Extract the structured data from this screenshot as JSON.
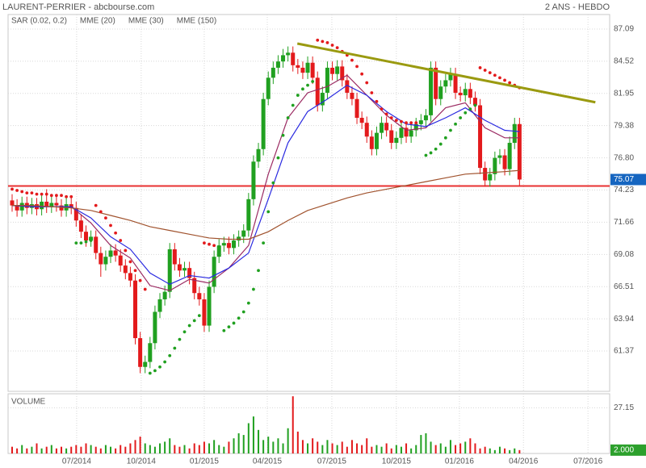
{
  "chart_data": {
    "type": "candlestick",
    "title": "LAURENT-PERRIER - abcbourse.com",
    "subtitle": "2 ANS - HEBDO",
    "up_color": "#20a020",
    "down_color": "#e31a1c",
    "x": [
      0,
      1,
      2,
      3,
      4,
      5,
      6,
      7,
      8,
      9,
      10,
      11,
      12,
      13,
      14,
      15,
      16,
      17,
      18,
      19,
      20,
      21,
      22,
      23,
      24,
      25,
      26,
      27,
      28,
      29,
      30,
      31,
      32,
      33,
      34,
      35,
      36,
      37,
      38,
      39,
      40,
      41,
      42,
      43,
      44,
      45,
      46,
      47,
      48,
      49,
      50,
      51,
      52,
      53,
      54,
      55,
      56,
      57,
      58,
      59,
      60,
      61,
      62,
      63,
      64,
      65,
      66,
      67,
      68,
      69,
      70,
      71,
      72,
      73,
      74,
      75,
      76,
      77,
      78,
      79,
      80,
      81,
      82,
      83,
      84,
      85,
      86,
      87,
      88,
      89,
      90,
      91,
      92,
      93,
      94,
      95,
      96,
      97,
      98,
      99,
      100,
      101,
      102,
      103
    ],
    "open": [
      73.4,
      73.0,
      72.6,
      73.2,
      72.8,
      73.1,
      72.7,
      73.3,
      72.9,
      73.2,
      73.0,
      72.6,
      73.1,
      72.8,
      71.8,
      70.9,
      70.2,
      70.5,
      69.2,
      68.3,
      68.9,
      69.4,
      69.0,
      68.2,
      67.6,
      67.0,
      62.4,
      60.1,
      60.5,
      62.0,
      64.5,
      65.5,
      66.1,
      69.5,
      68.3,
      67.8,
      68.0,
      67.2,
      66.0,
      65.5,
      63.4,
      66.5,
      68.9,
      69.8,
      70.0,
      69.6,
      70.2,
      70.5,
      71.0,
      73.5,
      76.5,
      77.5,
      81.5,
      83.2,
      84.0,
      84.5,
      85.0,
      85.2,
      84.2,
      84.0,
      83.6,
      84.4,
      83.2,
      81.0,
      82.0,
      84.0,
      83.5,
      84.1,
      83.0,
      82.0,
      81.5,
      80.0,
      79.6,
      78.5,
      77.5,
      78.8,
      79.6,
      79.0,
      78.0,
      78.4,
      79.2,
      78.5,
      79.0,
      79.5,
      79.8,
      80.2,
      84.0,
      81.5,
      82.5,
      83.0,
      83.5,
      82.0,
      81.8,
      82.3,
      81.6,
      81.0,
      76.0,
      75.0,
      75.5,
      76.8,
      77.0,
      75.9,
      78.0,
      79.5
    ],
    "high": [
      73.9,
      73.5,
      73.7,
      73.7,
      73.6,
      73.6,
      73.8,
      74.3,
      73.7,
      73.7,
      73.5,
      73.6,
      73.6,
      73.3,
      72.3,
      71.4,
      71.0,
      71.0,
      69.7,
      69.4,
      69.9,
      69.9,
      69.5,
      68.7,
      68.1,
      67.5,
      62.9,
      61.0,
      62.5,
      65.0,
      66.0,
      66.6,
      70.0,
      70.0,
      68.8,
      68.5,
      68.5,
      67.7,
      66.5,
      66.0,
      67.0,
      69.4,
      70.3,
      70.5,
      70.5,
      70.7,
      71.0,
      71.5,
      74.0,
      77.0,
      78.0,
      82.0,
      83.7,
      84.5,
      85.0,
      85.5,
      85.7,
      85.7,
      84.7,
      84.5,
      84.9,
      84.9,
      83.7,
      82.5,
      84.5,
      84.5,
      84.6,
      84.6,
      83.5,
      82.5,
      82.0,
      80.5,
      80.1,
      79.0,
      79.3,
      80.1,
      80.1,
      79.5,
      78.9,
      79.7,
      79.7,
      79.5,
      80.0,
      80.3,
      80.7,
      84.5,
      84.5,
      83.0,
      83.5,
      84.0,
      84.0,
      82.5,
      82.8,
      82.8,
      82.1,
      81.5,
      76.5,
      76.0,
      77.3,
      77.5,
      77.5,
      78.5,
      80.0,
      80.0
    ],
    "low": [
      72.5,
      72.1,
      72.1,
      72.3,
      72.3,
      72.2,
      72.2,
      72.4,
      72.4,
      72.5,
      72.1,
      72.1,
      72.3,
      71.3,
      70.4,
      69.7,
      69.7,
      68.7,
      67.3,
      67.8,
      68.4,
      68.5,
      67.7,
      67.1,
      66.5,
      61.9,
      59.6,
      59.6,
      60.0,
      61.5,
      64.0,
      65.0,
      65.6,
      67.8,
      67.3,
      67.3,
      66.7,
      65.5,
      65.0,
      62.9,
      62.9,
      66.0,
      68.4,
      69.3,
      69.1,
      69.1,
      69.7,
      70.0,
      70.5,
      73.0,
      76.0,
      77.0,
      81.0,
      82.7,
      83.5,
      84.0,
      84.5,
      83.7,
      83.5,
      83.1,
      83.1,
      82.7,
      80.5,
      80.5,
      81.5,
      83.0,
      83.0,
      82.5,
      81.5,
      81.0,
      79.5,
      79.1,
      78.0,
      77.0,
      77.0,
      78.3,
      78.5,
      77.5,
      77.5,
      77.9,
      78.0,
      78.0,
      78.5,
      79.0,
      79.3,
      79.7,
      81.0,
      81.0,
      82.0,
      82.5,
      81.5,
      81.3,
      81.3,
      81.1,
      80.5,
      75.5,
      74.5,
      74.5,
      75.0,
      76.3,
      75.4,
      75.4,
      77.5,
      74.6
    ],
    "close": [
      73.0,
      72.6,
      73.2,
      72.8,
      73.1,
      72.7,
      73.3,
      72.9,
      73.2,
      73.0,
      72.6,
      73.1,
      72.8,
      71.8,
      70.9,
      70.2,
      70.5,
      69.2,
      68.3,
      68.9,
      69.4,
      69.0,
      68.2,
      67.6,
      67.0,
      62.4,
      60.1,
      60.5,
      62.0,
      64.5,
      65.5,
      66.1,
      69.5,
      68.3,
      67.8,
      68.0,
      67.2,
      66.0,
      65.5,
      63.4,
      66.5,
      68.9,
      69.8,
      70.0,
      69.6,
      70.2,
      70.5,
      71.0,
      73.5,
      76.5,
      77.5,
      81.5,
      83.2,
      84.0,
      84.5,
      85.0,
      85.2,
      84.2,
      84.0,
      83.6,
      84.4,
      83.2,
      81.0,
      82.0,
      84.0,
      83.5,
      84.1,
      83.0,
      82.0,
      81.5,
      80.0,
      79.6,
      78.5,
      77.5,
      78.8,
      79.6,
      79.0,
      78.0,
      78.4,
      79.2,
      78.5,
      79.0,
      79.5,
      79.8,
      80.2,
      84.0,
      81.5,
      82.5,
      83.0,
      83.5,
      82.0,
      81.8,
      82.3,
      81.6,
      81.0,
      76.0,
      75.0,
      75.5,
      76.8,
      77.0,
      75.9,
      78.0,
      79.5,
      75.07
    ],
    "sar": {
      "name": "SAR (0.02, 0.2)",
      "color": "#e31a1c",
      "below_color": "#20a020",
      "values": [
        74.3,
        74.2,
        74.1,
        74.0,
        74.0,
        73.9,
        73.9,
        73.9,
        73.8,
        73.8,
        73.8,
        73.7,
        73.7,
        70.0,
        70.0,
        70.1,
        70.2,
        73.0,
        72.5,
        72.0,
        71.4,
        70.8,
        70.2,
        69.4,
        68.5,
        67.8,
        67.0,
        66.3,
        59.6,
        59.8,
        60.1,
        60.5,
        61.0,
        61.6,
        62.3,
        62.9,
        63.4,
        63.8,
        64.2,
        70.0,
        69.9,
        69.8,
        69.7,
        63.0,
        63.3,
        63.6,
        64.0,
        64.5,
        65.2,
        66.3,
        67.8,
        70.0,
        72.5,
        74.8,
        76.8,
        78.6,
        80.0,
        81.0,
        81.8,
        82.3,
        82.6,
        82.9,
        86.2,
        86.1,
        86.0,
        85.8,
        85.6,
        85.3,
        85.0,
        84.6,
        84.1,
        83.5,
        82.8,
        82.0,
        81.3,
        80.7,
        80.3,
        80.0,
        79.8,
        79.7,
        79.6,
        79.6,
        79.6,
        79.6,
        77.0,
        77.2,
        77.5,
        77.9,
        78.4,
        79.0,
        79.5,
        80.0,
        80.4,
        80.7,
        81.0,
        84.0,
        83.8,
        83.6,
        83.4,
        83.2,
        83.0,
        82.8,
        82.6,
        82.4
      ]
    },
    "series": [
      {
        "name": "MME (20)",
        "color": "#9b2a62",
        "x": [
          0,
          4,
          8,
          12,
          16,
          20,
          24,
          28,
          32,
          36,
          40,
          44,
          48,
          52,
          56,
          60,
          64,
          68,
          72,
          76,
          80,
          84,
          88,
          92,
          96,
          100,
          103
        ],
        "values": [
          73.0,
          72.9,
          72.9,
          72.9,
          71.6,
          69.8,
          68.8,
          66.6,
          66.2,
          67.1,
          66.8,
          68.0,
          69.8,
          75.5,
          80.0,
          82.0,
          82.5,
          83.4,
          81.8,
          80.2,
          79.0,
          79.2,
          80.8,
          81.2,
          79.2,
          78.4,
          78.4
        ]
      },
      {
        "name": "MME (30)",
        "color": "#2a2ae0",
        "x": [
          0,
          4,
          8,
          12,
          16,
          20,
          24,
          28,
          32,
          36,
          40,
          44,
          48,
          52,
          56,
          60,
          64,
          68,
          72,
          76,
          80,
          84,
          88,
          92,
          96,
          100,
          103
        ],
        "values": [
          73.0,
          72.9,
          72.9,
          72.9,
          72.0,
          70.5,
          69.5,
          67.6,
          66.7,
          67.4,
          67.2,
          68.0,
          69.2,
          73.5,
          78.0,
          80.5,
          81.5,
          82.6,
          81.8,
          80.5,
          79.5,
          79.3,
          80.0,
          80.8,
          79.8,
          79.0,
          78.9
        ]
      },
      {
        "name": "MME (150)",
        "color": "#a0522d",
        "x": [
          0,
          4,
          8,
          12,
          16,
          20,
          24,
          28,
          32,
          36,
          40,
          44,
          48,
          52,
          56,
          60,
          64,
          68,
          72,
          76,
          80,
          84,
          88,
          92,
          96,
          100,
          103
        ],
        "values": [
          73.0,
          73.0,
          72.9,
          72.8,
          72.6,
          72.2,
          71.8,
          71.3,
          71.0,
          70.7,
          70.4,
          70.3,
          70.3,
          70.9,
          71.8,
          72.6,
          73.1,
          73.6,
          74.0,
          74.3,
          74.6,
          74.9,
          75.2,
          75.5,
          75.6,
          75.7,
          75.8
        ]
      }
    ],
    "trendline": {
      "color": "#9a9a10",
      "x": [
        57.9,
        118.4
      ],
      "y": [
        85.93,
        81.24
      ]
    },
    "hline": {
      "color": "#e83030",
      "value": 74.55
    },
    "current": 75.07,
    "xlim": [
      -0.82,
      121.3
    ],
    "xticks": [
      {
        "value": 13.1,
        "label": "07/2014"
      },
      {
        "value": 26.2,
        "label": "10/2014"
      },
      {
        "value": 39.0,
        "label": "01/2015"
      },
      {
        "value": 51.8,
        "label": "04/2015"
      },
      {
        "value": 64.9,
        "label": "07/2015"
      },
      {
        "value": 78.0,
        "label": "10/2015"
      },
      {
        "value": 90.8,
        "label": "01/2016"
      },
      {
        "value": 103.8,
        "label": "04/2016"
      },
      {
        "value": 116.9,
        "label": "07/2016"
      }
    ],
    "ylim": [
      58.15,
      88.25
    ],
    "yticks": [
      87.09,
      84.52,
      81.95,
      79.38,
      {
        "value": 76.8,
        "label": "76.80"
      },
      74.23,
      71.66,
      69.08,
      66.51,
      63.94,
      61.37
    ],
    "grid": true,
    "volume": {
      "title": "VOLUME",
      "values": [
        4,
        3,
        5,
        3,
        4,
        6,
        3,
        4,
        5,
        3,
        4,
        3,
        4,
        5,
        4,
        6,
        5,
        4,
        3,
        5,
        4,
        3,
        5,
        4,
        6,
        8,
        10,
        6,
        5,
        4,
        6,
        7,
        9,
        5,
        4,
        5,
        3,
        6,
        5,
        7,
        6,
        8,
        5,
        4,
        7,
        9,
        12,
        11,
        18,
        22,
        14,
        8,
        10,
        7,
        9,
        6,
        15,
        34,
        13,
        8,
        6,
        9,
        7,
        5,
        8,
        6,
        5,
        7,
        4,
        8,
        6,
        5,
        9,
        4,
        5,
        4,
        6,
        3,
        5,
        4,
        6,
        3,
        5,
        11,
        12,
        7,
        5,
        6,
        4,
        8,
        5,
        6,
        7,
        9,
        6,
        3,
        4,
        3,
        2,
        4,
        3,
        2,
        3,
        2
      ],
      "ylim": [
        0,
        35.5
      ],
      "yticks": [
        27.15
      ],
      "current": {
        "value": 2,
        "label": "2.000"
      }
    }
  }
}
